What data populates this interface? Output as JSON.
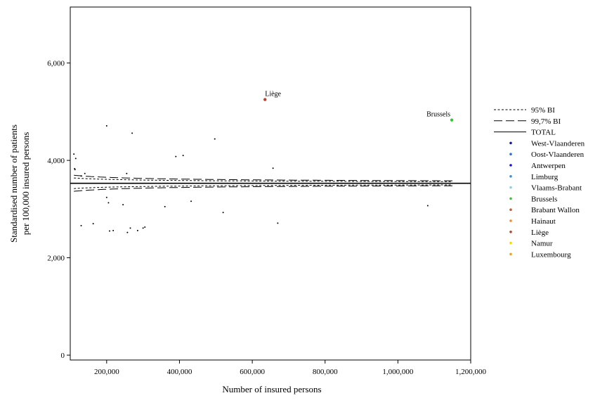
{
  "chart_data": {
    "type": "scatter",
    "title": "",
    "xlabel": "Number of insured persons",
    "ylabel_lines": [
      "Standardised number of patients",
      "per 100,000 insured persons"
    ],
    "xlim": [
      100000,
      1200000
    ],
    "ylim": [
      -100,
      7150
    ],
    "x_ticks": [
      200000,
      400000,
      600000,
      800000,
      1000000,
      1200000
    ],
    "x_tick_labels": [
      "200,000",
      "400,000",
      "600,000",
      "800,000",
      "1,000,000",
      "1,200,000"
    ],
    "y_ticks": [
      0,
      2000,
      4000,
      6000
    ],
    "y_tick_labels": [
      "0",
      "2,000",
      "4,000",
      "6,000"
    ],
    "grid": false,
    "legend_position": "right",
    "total_rate": 3530,
    "ci95_z": 1.96,
    "ci997_z": 2.97,
    "curve_x_range": [
      110000,
      1150000
    ],
    "legend": [
      {
        "label": "95% BI",
        "kind": "dotted"
      },
      {
        "label": "99,7% BI",
        "kind": "dashed"
      },
      {
        "label": "TOTAL",
        "kind": "solid"
      },
      {
        "label": "West-Vlaanderen",
        "kind": "dot",
        "color": "#1a1a8c"
      },
      {
        "label": "Oost-Vlaanderen",
        "kind": "dot",
        "color": "#3a6fcf"
      },
      {
        "label": "Antwerpen",
        "kind": "dot",
        "color": "#1414d8"
      },
      {
        "label": "Limburg",
        "kind": "dot",
        "color": "#3d8fd6"
      },
      {
        "label": "Vlaams-Brabant",
        "kind": "dot",
        "color": "#8ccfe6"
      },
      {
        "label": "Brussels",
        "kind": "dot",
        "color": "#3ac43a"
      },
      {
        "label": "Brabant Wallon",
        "kind": "dot",
        "color": "#c0603a"
      },
      {
        "label": "Hainaut",
        "kind": "dot",
        "color": "#f08c30"
      },
      {
        "label": "Liège",
        "kind": "dot",
        "color": "#a84a3a"
      },
      {
        "label": "Namur",
        "kind": "dot",
        "color": "#f5d90a"
      },
      {
        "label": "Luxembourg",
        "kind": "dot",
        "color": "#e8a030"
      }
    ],
    "annotations": [
      {
        "text": "Liège",
        "x": 635000,
        "y": 5250
      },
      {
        "text": "Brussels",
        "x": 1148000,
        "y": 4830
      }
    ],
    "points": [
      {
        "x": 635000,
        "y": 5250,
        "color": "#a84a3a"
      },
      {
        "x": 1148000,
        "y": 4830,
        "color": "#3ac43a"
      },
      {
        "x": 110000,
        "y": 4130,
        "color": "#000000"
      },
      {
        "x": 115000,
        "y": 4040,
        "color": "#000000"
      },
      {
        "x": 112000,
        "y": 3830,
        "color": "#000000"
      },
      {
        "x": 113000,
        "y": 3810,
        "color": "#000000"
      },
      {
        "x": 130000,
        "y": 3680,
        "color": "#000000"
      },
      {
        "x": 140000,
        "y": 3730,
        "color": "#000000"
      },
      {
        "x": 200000,
        "y": 4710,
        "color": "#000000"
      },
      {
        "x": 270000,
        "y": 4560,
        "color": "#000000"
      },
      {
        "x": 255000,
        "y": 3730,
        "color": "#000000"
      },
      {
        "x": 390000,
        "y": 4080,
        "color": "#000000"
      },
      {
        "x": 410000,
        "y": 4100,
        "color": "#000000"
      },
      {
        "x": 497000,
        "y": 4440,
        "color": "#000000"
      },
      {
        "x": 657000,
        "y": 3840,
        "color": "#000000"
      },
      {
        "x": 200000,
        "y": 3240,
        "color": "#000000"
      },
      {
        "x": 205000,
        "y": 3130,
        "color": "#000000"
      },
      {
        "x": 245000,
        "y": 3090,
        "color": "#000000"
      },
      {
        "x": 360000,
        "y": 3050,
        "color": "#000000"
      },
      {
        "x": 432000,
        "y": 3160,
        "color": "#000000"
      },
      {
        "x": 520000,
        "y": 2930,
        "color": "#000000"
      },
      {
        "x": 1082000,
        "y": 3070,
        "color": "#000000"
      },
      {
        "x": 130000,
        "y": 2660,
        "color": "#000000"
      },
      {
        "x": 163000,
        "y": 2700,
        "color": "#000000"
      },
      {
        "x": 208000,
        "y": 2550,
        "color": "#000000"
      },
      {
        "x": 218000,
        "y": 2560,
        "color": "#000000"
      },
      {
        "x": 257000,
        "y": 2520,
        "color": "#000000"
      },
      {
        "x": 265000,
        "y": 2610,
        "color": "#000000"
      },
      {
        "x": 285000,
        "y": 2560,
        "color": "#000000"
      },
      {
        "x": 300000,
        "y": 2610,
        "color": "#000000"
      },
      {
        "x": 305000,
        "y": 2630,
        "color": "#000000"
      },
      {
        "x": 670000,
        "y": 2710,
        "color": "#000000"
      }
    ]
  }
}
